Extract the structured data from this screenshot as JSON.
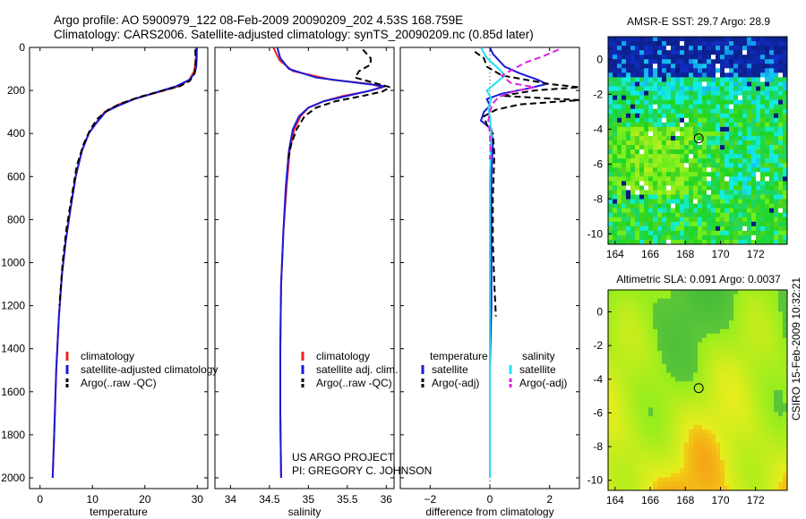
{
  "header": {
    "line1": "Argo profile: AO 5900979_122 08-Feb-2009 20090209_202 4.53S 168.759E",
    "line2": "Climatology: CARS2006. Satellite-adjusted climatology: synTS_20090209.nc (0.85d later)"
  },
  "footer": {
    "project": "US ARGO PROJECT",
    "pi": "PI: GREGORY C. JOHNSON",
    "stamp": "CSIRO 15-Feb-2009 10:32:21"
  },
  "colors": {
    "climatology": "#ee2222",
    "satellite": "#1a1ad8",
    "argo": "#000000",
    "salinity_sat": "#22e0ee",
    "salinity_argo": "#dd22dd"
  },
  "chart_data": [
    {
      "id": "temperature",
      "type": "line",
      "xlabel": "temperature",
      "xlim": [
        -2,
        32
      ],
      "ylim": [
        2050,
        0
      ],
      "xticks": [
        0,
        10,
        20,
        30
      ],
      "yticks": [
        0,
        200,
        400,
        600,
        800,
        1000,
        1200,
        1400,
        1600,
        1800,
        2000
      ],
      "legend": [
        "climatology",
        "satellite-adjusted climatology",
        "Argo(..raw -QC)"
      ],
      "series": [
        {
          "name": "climatology",
          "style": "red",
          "points": [
            [
              29.8,
              0
            ],
            [
              29.7,
              60
            ],
            [
              29.4,
              110
            ],
            [
              28.5,
              150
            ],
            [
              26.5,
              180
            ],
            [
              23,
              205
            ],
            [
              18.5,
              235
            ],
            [
              15,
              265
            ],
            [
              12.3,
              300
            ],
            [
              10.7,
              350
            ],
            [
              9.3,
              400
            ],
            [
              8,
              480
            ],
            [
              6.8,
              600
            ],
            [
              5.8,
              750
            ],
            [
              4.9,
              900
            ],
            [
              4.2,
              1050
            ],
            [
              3.6,
              1250
            ],
            [
              3.1,
              1500
            ],
            [
              2.7,
              1800
            ],
            [
              2.4,
              2000
            ]
          ]
        },
        {
          "name": "satellite-adjusted climatology",
          "style": "blue",
          "points": [
            [
              29.9,
              0
            ],
            [
              29.9,
              50
            ],
            [
              29.8,
              90
            ],
            [
              29.5,
              120
            ],
            [
              28.5,
              150
            ],
            [
              26,
              180
            ],
            [
              22,
              210
            ],
            [
              18,
              240
            ],
            [
              15,
              270
            ],
            [
              12.5,
              300
            ],
            [
              10.8,
              350
            ],
            [
              9.3,
              400
            ],
            [
              8,
              480
            ],
            [
              6.8,
              600
            ],
            [
              5.8,
              750
            ],
            [
              4.9,
              900
            ],
            [
              4.2,
              1050
            ],
            [
              3.6,
              1250
            ],
            [
              3.1,
              1500
            ],
            [
              2.7,
              1800
            ],
            [
              2.4,
              2000
            ]
          ]
        },
        {
          "name": "Argo(..raw -QC)",
          "style": "black-dash",
          "points": [
            [
              29.6,
              10
            ],
            [
              29.7,
              70
            ],
            [
              29.5,
              120
            ],
            [
              28.6,
              155
            ],
            [
              26.7,
              180
            ],
            [
              23.5,
              200
            ],
            [
              19,
              230
            ],
            [
              15.5,
              260
            ],
            [
              13,
              290
            ],
            [
              11,
              330
            ],
            [
              9.6,
              380
            ],
            [
              8.3,
              450
            ],
            [
              7,
              550
            ],
            [
              6,
              700
            ],
            [
              5,
              850
            ],
            [
              4.3,
              1000
            ],
            [
              3.7,
              1200
            ]
          ]
        }
      ]
    },
    {
      "id": "salinity",
      "type": "line",
      "xlabel": "salinity",
      "xlim": [
        33.8,
        36.1
      ],
      "ylim": [
        2050,
        0
      ],
      "xticks": [
        34,
        34.5,
        35,
        35.5,
        36
      ],
      "xticklabels": [
        "34",
        "34.5",
        "35",
        "35.5",
        "36"
      ],
      "legend": [
        "climatology",
        "satellite adj. clim.",
        "Argo(..raw -QC)"
      ],
      "series": [
        {
          "name": "climatology",
          "style": "red",
          "points": [
            [
              34.55,
              0
            ],
            [
              34.63,
              60
            ],
            [
              34.8,
              110
            ],
            [
              35.3,
              150
            ],
            [
              35.8,
              170
            ],
            [
              35.95,
              185
            ],
            [
              35.75,
              205
            ],
            [
              35.45,
              225
            ],
            [
              35.2,
              250
            ],
            [
              35.0,
              280
            ],
            [
              34.9,
              320
            ],
            [
              34.82,
              380
            ],
            [
              34.76,
              480
            ],
            [
              34.72,
              650
            ],
            [
              34.68,
              850
            ],
            [
              34.65,
              1100
            ],
            [
              34.64,
              1400
            ],
            [
              34.64,
              1700
            ],
            [
              34.65,
              2000
            ]
          ]
        },
        {
          "name": "satellite adj. clim.",
          "style": "blue",
          "points": [
            [
              34.6,
              0
            ],
            [
              34.64,
              50
            ],
            [
              34.75,
              100
            ],
            [
              35.1,
              140
            ],
            [
              35.65,
              165
            ],
            [
              35.98,
              180
            ],
            [
              35.8,
              200
            ],
            [
              35.5,
              225
            ],
            [
              35.2,
              250
            ],
            [
              35.0,
              280
            ],
            [
              34.88,
              320
            ],
            [
              34.8,
              380
            ],
            [
              34.75,
              480
            ],
            [
              34.71,
              650
            ],
            [
              34.68,
              850
            ],
            [
              34.65,
              1100
            ],
            [
              34.64,
              1400
            ],
            [
              34.64,
              1700
            ],
            [
              34.65,
              2000
            ]
          ]
        },
        {
          "name": "Argo(..raw -QC)",
          "style": "black-dash",
          "points": [
            [
              35.7,
              10
            ],
            [
              35.8,
              50
            ],
            [
              35.8,
              80
            ],
            [
              35.65,
              110
            ],
            [
              35.6,
              140
            ],
            [
              35.85,
              165
            ],
            [
              36.05,
              185
            ],
            [
              35.95,
              205
            ],
            [
              35.7,
              225
            ],
            [
              35.35,
              250
            ],
            [
              35.1,
              280
            ],
            [
              34.95,
              320
            ],
            [
              34.85,
              380
            ],
            [
              34.78,
              450
            ],
            [
              34.74,
              520
            ]
          ]
        }
      ]
    },
    {
      "id": "difference",
      "type": "line",
      "xlabel": "difference from climatology",
      "xlim": [
        -3,
        3
      ],
      "ylim": [
        2050,
        0
      ],
      "xticks": [
        -2,
        0,
        2
      ],
      "xticklabels": [
        "−2",
        "0",
        "2"
      ],
      "legend_titles": [
        "temperature",
        "salinity"
      ],
      "legend": [
        "satellite",
        "Argo(-adj)",
        "satellite",
        "Argo(-adj)"
      ],
      "series": [
        {
          "name": "temperature satellite",
          "style": "blue",
          "points": [
            [
              0,
              0
            ],
            [
              0.1,
              30
            ],
            [
              0.3,
              60
            ],
            [
              0.5,
              90
            ],
            [
              1.0,
              120
            ],
            [
              1.6,
              150
            ],
            [
              1.9,
              170
            ],
            [
              1.3,
              190
            ],
            [
              0.4,
              215
            ],
            [
              -0.1,
              240
            ],
            [
              0.0,
              270
            ],
            [
              -0.2,
              300
            ],
            [
              -0.3,
              340
            ],
            [
              0.05,
              380
            ],
            [
              0.1,
              450
            ],
            [
              0.05,
              600
            ],
            [
              0.05,
              800
            ],
            [
              0.05,
              1000
            ],
            [
              0.05,
              1200
            ],
            [
              0.0,
              1500
            ],
            [
              0.0,
              1800
            ],
            [
              0.0,
              2000
            ]
          ]
        },
        {
          "name": "temperature Argo(-adj)",
          "style": "black-dash",
          "points": [
            [
              -0.5,
              20
            ],
            [
              -0.2,
              50
            ],
            [
              -0.1,
              90
            ],
            [
              0.4,
              130
            ],
            [
              1.2,
              150
            ],
            [
              2.0,
              170
            ],
            [
              3.0,
              185
            ],
            [
              1.5,
              200
            ],
            [
              0.4,
              225
            ],
            [
              3.0,
              245
            ],
            [
              1.0,
              265
            ],
            [
              0.2,
              290
            ],
            [
              -0.2,
              320
            ],
            [
              -0.1,
              360
            ],
            [
              0.1,
              400
            ],
            [
              0.15,
              500
            ],
            [
              0.1,
              700
            ],
            [
              0.1,
              900
            ],
            [
              0.15,
              1100
            ],
            [
              0.2,
              1250
            ]
          ]
        },
        {
          "name": "salinity satellite",
          "style": "cyan",
          "points": [
            [
              -0.3,
              0
            ],
            [
              -0.1,
              50
            ],
            [
              0.3,
              100
            ],
            [
              0.5,
              130
            ],
            [
              0.2,
              165
            ],
            [
              -0.1,
              200
            ],
            [
              0.05,
              240
            ],
            [
              -0.05,
              280
            ],
            [
              0.0,
              320
            ],
            [
              0.05,
              400
            ],
            [
              0.0,
              600
            ],
            [
              0.0,
              900
            ],
            [
              0.0,
              1200
            ],
            [
              0.0,
              1500
            ],
            [
              0.0,
              1800
            ],
            [
              0.0,
              2000
            ]
          ]
        },
        {
          "name": "salinity Argo(-adj)",
          "style": "magenta-dash",
          "points": [
            [
              2.3,
              10
            ],
            [
              1.8,
              40
            ],
            [
              1.2,
              70
            ],
            [
              0.8,
              100
            ],
            [
              0.4,
              130
            ],
            [
              0.7,
              165
            ],
            [
              1.5,
              185
            ],
            [
              0.8,
              205
            ],
            [
              0.3,
              230
            ],
            [
              0.1,
              260
            ],
            [
              0.0,
              300
            ],
            [
              -0.05,
              340
            ],
            [
              0.0,
              400
            ],
            [
              0.02,
              480
            ],
            [
              0.0,
              520
            ]
          ]
        }
      ]
    }
  ],
  "maps": [
    {
      "id": "sst",
      "title": "AMSR-E SST: 29.7 Argo: 28.9",
      "xticks": [
        "164",
        "166",
        "168",
        "170",
        "172"
      ],
      "yticks": [
        "0",
        "-2",
        "-4",
        "-6",
        "-8",
        "-10"
      ],
      "marker": {
        "lon": 168.76,
        "lat": -4.53
      }
    },
    {
      "id": "sla",
      "title": "Altimetric SLA: 0.091 Argo: 0.0037",
      "xticks": [
        "164",
        "166",
        "168",
        "170",
        "172"
      ],
      "yticks": [
        "0",
        "-2",
        "-4",
        "-6",
        "-8",
        "-10"
      ],
      "marker": {
        "lon": 168.76,
        "lat": -4.53
      }
    }
  ]
}
